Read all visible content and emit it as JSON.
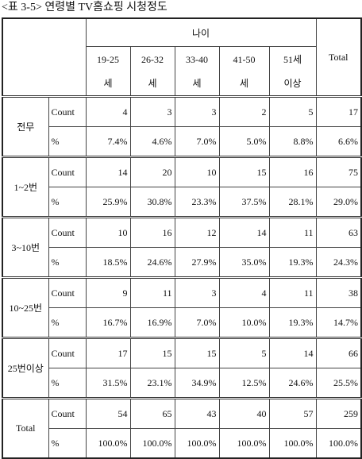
{
  "title": "<표 3-5> 연령별 TV홈쇼핑 시청정도",
  "table": {
    "group_header": "나이",
    "columns": [
      "19-25\n세",
      "26-32\n세",
      "33-40\n세",
      "41-50\n세",
      "51세\n이상"
    ],
    "total_header": "Total",
    "groups": [
      {
        "label": "전무",
        "rows": [
          {
            "stat": "Count",
            "cells": [
              4,
              3,
              3,
              2,
              5,
              17
            ]
          },
          {
            "stat": "%",
            "cells": [
              "7.4%",
              "4.6%",
              "7.0%",
              "5.0%",
              "8.8%",
              "6.6%"
            ]
          }
        ]
      },
      {
        "label": "1~2번",
        "rows": [
          {
            "stat": "Count",
            "cells": [
              14,
              20,
              10,
              15,
              16,
              75
            ]
          },
          {
            "stat": "%",
            "cells": [
              "25.9%",
              "30.8%",
              "23.3%",
              "37.5%",
              "28.1%",
              "29.0%"
            ]
          }
        ]
      },
      {
        "label": "3~10번",
        "rows": [
          {
            "stat": "Count",
            "cells": [
              10,
              16,
              12,
              14,
              11,
              63
            ]
          },
          {
            "stat": "%",
            "cells": [
              "18.5%",
              "24.6%",
              "27.9%",
              "35.0%",
              "19.3%",
              "24.3%"
            ]
          }
        ]
      },
      {
        "label": "10~25번",
        "rows": [
          {
            "stat": "Count",
            "cells": [
              9,
              11,
              3,
              4,
              11,
              38
            ]
          },
          {
            "stat": "%",
            "cells": [
              "16.7%",
              "16.9%",
              "7.0%",
              "10.0%",
              "19.3%",
              "14.7%"
            ]
          }
        ]
      },
      {
        "label": "25번이상",
        "rows": [
          {
            "stat": "Count",
            "cells": [
              17,
              15,
              15,
              5,
              14,
              66
            ]
          },
          {
            "stat": "%",
            "cells": [
              "31.5%",
              "23.1%",
              "34.9%",
              "12.5%",
              "24.6%",
              "25.5%"
            ]
          }
        ]
      },
      {
        "label": "Total",
        "rows": [
          {
            "stat": "Count",
            "cells": [
              54,
              65,
              43,
              40,
              57,
              259
            ]
          },
          {
            "stat": "%",
            "cells": [
              "100.0%",
              "100.0%",
              "100.0%",
              "100.0%",
              "100.0%",
              "100.0%"
            ]
          }
        ]
      }
    ]
  }
}
